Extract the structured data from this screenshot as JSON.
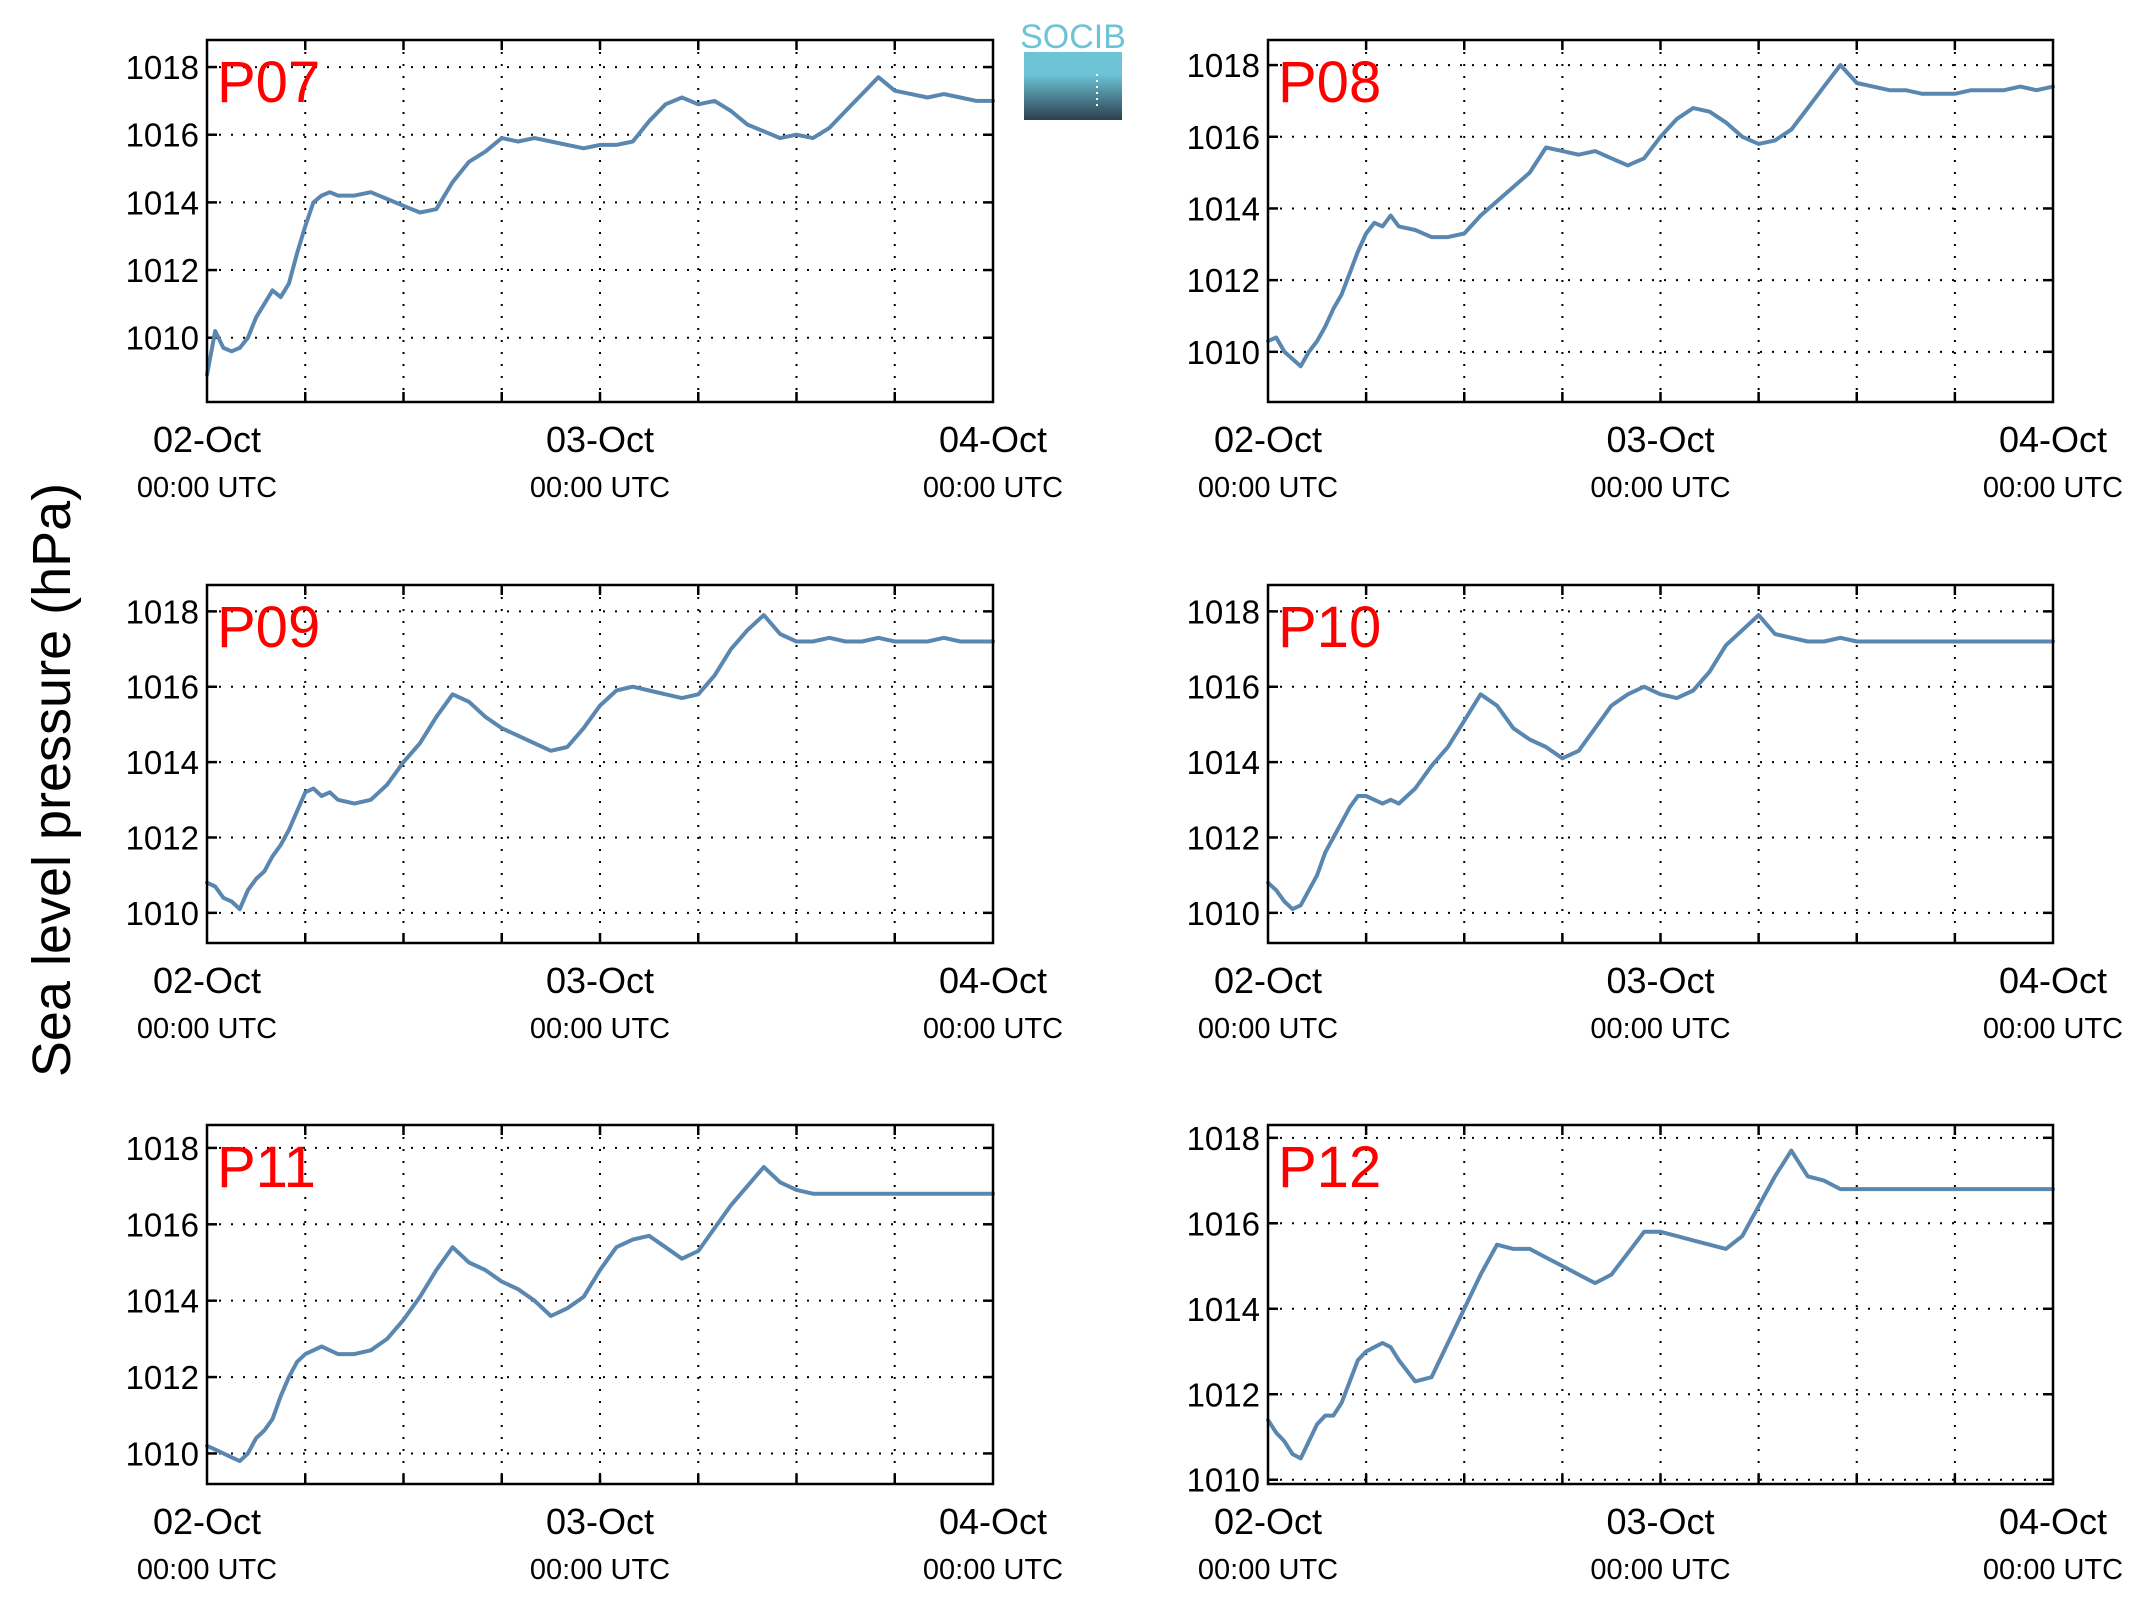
{
  "ylabel": "Sea level pressure (hPa)",
  "logo": {
    "text": "SOCIB",
    "color_top": "#6cc4d6",
    "color_bottom": "#2d3f4e"
  },
  "colors": {
    "series": "#5a87b0",
    "panel_label": "#ff0000"
  },
  "x_ticks": [
    {
      "date": "02-Oct",
      "time": "00:00 UTC",
      "hours": 0
    },
    {
      "date": "03-Oct",
      "time": "00:00 UTC",
      "hours": 24
    },
    {
      "date": "04-Oct",
      "time": "00:00 UTC",
      "hours": 48
    }
  ],
  "chart_data": [
    {
      "type": "line",
      "name": "P07",
      "xlim": [
        0,
        48
      ],
      "ylim": [
        1008.1,
        1018.8
      ],
      "yticks": [
        1010,
        1012,
        1014,
        1016,
        1018
      ],
      "grid": true,
      "x": [
        0,
        0.5,
        1,
        1.5,
        2,
        2.5,
        3,
        3.5,
        4,
        4.5,
        5,
        5.5,
        6,
        6.5,
        7,
        7.5,
        8,
        9,
        10,
        11,
        12,
        13,
        14,
        15,
        16,
        17,
        18,
        19,
        20,
        21,
        22,
        23,
        24,
        25,
        26,
        27,
        28,
        29,
        30,
        31,
        32,
        33,
        34,
        35,
        36,
        37,
        38,
        39,
        40,
        41,
        42,
        43,
        44,
        45,
        46,
        47,
        48
      ],
      "y": [
        1008.9,
        1010.2,
        1009.7,
        1009.6,
        1009.7,
        1010.0,
        1010.6,
        1011.0,
        1011.4,
        1011.2,
        1011.6,
        1012.5,
        1013.3,
        1014.0,
        1014.2,
        1014.3,
        1014.2,
        1014.2,
        1014.3,
        1014.1,
        1013.9,
        1013.7,
        1013.8,
        1014.6,
        1015.2,
        1015.5,
        1015.9,
        1015.8,
        1015.9,
        1015.8,
        1015.7,
        1015.6,
        1015.7,
        1015.7,
        1015.8,
        1016.4,
        1016.9,
        1017.1,
        1016.9,
        1017.0,
        1016.7,
        1016.3,
        1016.1,
        1015.9,
        1016.0,
        1015.9,
        1016.2,
        1016.7,
        1017.2,
        1017.7,
        1017.3,
        1017.2,
        1017.1,
        1017.2,
        1017.1,
        1017.0,
        1017.0
      ]
    },
    {
      "type": "line",
      "name": "P08",
      "xlim": [
        0,
        48
      ],
      "ylim": [
        1008.6,
        1018.7
      ],
      "yticks": [
        1010,
        1012,
        1014,
        1016,
        1018
      ],
      "grid": true,
      "x": [
        0,
        0.5,
        1,
        1.5,
        2,
        2.5,
        3,
        3.5,
        4,
        4.5,
        5,
        5.5,
        6,
        6.5,
        7,
        7.5,
        8,
        9,
        10,
        11,
        12,
        13,
        14,
        15,
        16,
        17,
        18,
        19,
        20,
        21,
        22,
        23,
        24,
        25,
        26,
        27,
        28,
        29,
        30,
        31,
        32,
        33,
        34,
        35,
        36,
        37,
        38,
        39,
        40,
        41,
        42,
        43,
        44,
        45,
        46,
        47,
        48
      ],
      "y": [
        1010.3,
        1010.4,
        1010.0,
        1009.8,
        1009.6,
        1010.0,
        1010.3,
        1010.7,
        1011.2,
        1011.6,
        1012.2,
        1012.8,
        1013.3,
        1013.6,
        1013.5,
        1013.8,
        1013.5,
        1013.4,
        1013.2,
        1013.2,
        1013.3,
        1013.8,
        1014.2,
        1014.6,
        1015.0,
        1015.7,
        1015.6,
        1015.5,
        1015.6,
        1015.4,
        1015.2,
        1015.4,
        1016.0,
        1016.5,
        1016.8,
        1016.7,
        1016.4,
        1016.0,
        1015.8,
        1015.9,
        1016.2,
        1016.8,
        1017.4,
        1018.0,
        1017.5,
        1017.4,
        1017.3,
        1017.3,
        1017.2,
        1017.2,
        1017.2,
        1017.3,
        1017.3,
        1017.3,
        1017.4,
        1017.3,
        1017.4
      ]
    },
    {
      "type": "line",
      "name": "P09",
      "xlim": [
        0,
        48
      ],
      "ylim": [
        1009.2,
        1018.7
      ],
      "yticks": [
        1010,
        1012,
        1014,
        1016,
        1018
      ],
      "grid": true,
      "x": [
        0,
        0.5,
        1,
        1.5,
        2,
        2.5,
        3,
        3.5,
        4,
        4.5,
        5,
        5.5,
        6,
        6.5,
        7,
        7.5,
        8,
        9,
        10,
        11,
        12,
        13,
        14,
        15,
        16,
        17,
        18,
        19,
        20,
        21,
        22,
        23,
        24,
        25,
        26,
        27,
        28,
        29,
        30,
        31,
        32,
        33,
        34,
        35,
        36,
        37,
        38,
        39,
        40,
        41,
        42,
        43,
        44,
        45,
        46,
        47,
        48
      ],
      "y": [
        1010.8,
        1010.7,
        1010.4,
        1010.3,
        1010.1,
        1010.6,
        1010.9,
        1011.1,
        1011.5,
        1011.8,
        1012.2,
        1012.7,
        1013.2,
        1013.3,
        1013.1,
        1013.2,
        1013.0,
        1012.9,
        1013.0,
        1013.4,
        1014.0,
        1014.5,
        1015.2,
        1015.8,
        1015.6,
        1015.2,
        1014.9,
        1014.7,
        1014.5,
        1014.3,
        1014.4,
        1014.9,
        1015.5,
        1015.9,
        1016.0,
        1015.9,
        1015.8,
        1015.7,
        1015.8,
        1016.3,
        1017.0,
        1017.5,
        1017.9,
        1017.4,
        1017.2,
        1017.2,
        1017.3,
        1017.2,
        1017.2,
        1017.3,
        1017.2,
        1017.2,
        1017.2,
        1017.3,
        1017.2,
        1017.2,
        1017.2
      ]
    },
    {
      "type": "line",
      "name": "P10",
      "xlim": [
        0,
        48
      ],
      "ylim": [
        1009.2,
        1018.7
      ],
      "yticks": [
        1010,
        1012,
        1014,
        1016,
        1018
      ],
      "grid": true,
      "x": [
        0,
        0.5,
        1,
        1.5,
        2,
        2.5,
        3,
        3.5,
        4,
        4.5,
        5,
        5.5,
        6,
        6.5,
        7,
        7.5,
        8,
        9,
        10,
        11,
        12,
        13,
        14,
        15,
        16,
        17,
        18,
        19,
        20,
        21,
        22,
        23,
        24,
        25,
        26,
        27,
        28,
        29,
        30,
        31,
        32,
        33,
        34,
        35,
        36,
        37,
        38,
        39,
        40,
        41,
        42,
        43,
        44,
        45,
        46,
        47,
        48
      ],
      "y": [
        1010.8,
        1010.6,
        1010.3,
        1010.1,
        1010.2,
        1010.6,
        1011.0,
        1011.6,
        1012.0,
        1012.4,
        1012.8,
        1013.1,
        1013.1,
        1013.0,
        1012.9,
        1013.0,
        1012.9,
        1013.3,
        1013.9,
        1014.4,
        1015.1,
        1015.8,
        1015.5,
        1014.9,
        1014.6,
        1014.4,
        1014.1,
        1014.3,
        1014.9,
        1015.5,
        1015.8,
        1016.0,
        1015.8,
        1015.7,
        1015.9,
        1016.4,
        1017.1,
        1017.5,
        1017.9,
        1017.4,
        1017.3,
        1017.2,
        1017.2,
        1017.3,
        1017.2,
        1017.2,
        1017.2,
        1017.2,
        1017.2,
        1017.2,
        1017.2,
        1017.2,
        1017.2,
        1017.2,
        1017.2,
        1017.2,
        1017.2
      ]
    },
    {
      "type": "line",
      "name": "P11",
      "xlim": [
        0,
        48
      ],
      "ylim": [
        1009.2,
        1018.6
      ],
      "yticks": [
        1010,
        1012,
        1014,
        1016,
        1018
      ],
      "grid": true,
      "x": [
        0,
        0.5,
        1,
        1.5,
        2,
        2.5,
        3,
        3.5,
        4,
        4.5,
        5,
        5.5,
        6,
        6.5,
        7,
        7.5,
        8,
        9,
        10,
        11,
        12,
        13,
        14,
        15,
        16,
        17,
        18,
        19,
        20,
        21,
        22,
        23,
        24,
        25,
        26,
        27,
        28,
        29,
        30,
        31,
        32,
        33,
        34,
        35,
        36,
        37,
        38,
        39,
        40,
        41,
        42,
        43,
        44,
        45,
        46,
        47,
        48
      ],
      "y": [
        1010.2,
        1010.1,
        1010.0,
        1009.9,
        1009.8,
        1010.0,
        1010.4,
        1010.6,
        1010.9,
        1011.5,
        1012.0,
        1012.4,
        1012.6,
        1012.7,
        1012.8,
        1012.7,
        1012.6,
        1012.6,
        1012.7,
        1013.0,
        1013.5,
        1014.1,
        1014.8,
        1015.4,
        1015.0,
        1014.8,
        1014.5,
        1014.3,
        1014.0,
        1013.6,
        1013.8,
        1014.1,
        1014.8,
        1015.4,
        1015.6,
        1015.7,
        1015.4,
        1015.1,
        1015.3,
        1015.9,
        1016.5,
        1017.0,
        1017.5,
        1017.1,
        1016.9,
        1016.8,
        1016.8,
        1016.8,
        1016.8,
        1016.8,
        1016.8,
        1016.8,
        1016.8,
        1016.8,
        1016.8,
        1016.8,
        1016.8
      ]
    },
    {
      "type": "line",
      "name": "P12",
      "xlim": [
        0,
        48
      ],
      "ylim": [
        1009.9,
        1018.3
      ],
      "yticks": [
        1010,
        1012,
        1014,
        1016,
        1018
      ],
      "grid": true,
      "x": [
        0,
        0.5,
        1,
        1.5,
        2,
        2.5,
        3,
        3.5,
        4,
        4.5,
        5,
        5.5,
        6,
        6.5,
        7,
        7.5,
        8,
        9,
        10,
        11,
        12,
        13,
        14,
        15,
        16,
        17,
        18,
        19,
        20,
        21,
        22,
        23,
        24,
        25,
        26,
        27,
        28,
        29,
        30,
        31,
        32,
        33,
        34,
        35,
        36,
        37,
        38,
        39,
        40,
        41,
        42,
        43,
        44,
        45,
        46,
        47,
        48
      ],
      "y": [
        1011.4,
        1011.1,
        1010.9,
        1010.6,
        1010.5,
        1010.9,
        1011.3,
        1011.5,
        1011.5,
        1011.8,
        1012.3,
        1012.8,
        1013.0,
        1013.1,
        1013.2,
        1013.1,
        1012.8,
        1012.3,
        1012.4,
        1013.2,
        1014.0,
        1014.8,
        1015.5,
        1015.4,
        1015.4,
        1015.2,
        1015.0,
        1014.8,
        1014.6,
        1014.8,
        1015.3,
        1015.8,
        1015.8,
        1015.7,
        1015.6,
        1015.5,
        1015.4,
        1015.7,
        1016.4,
        1017.1,
        1017.7,
        1017.1,
        1017.0,
        1016.8,
        1016.8,
        1016.8,
        1016.8,
        1016.8,
        1016.8,
        1016.8,
        1016.8,
        1016.8,
        1016.8,
        1016.8,
        1016.8,
        1016.8,
        1016.8
      ]
    }
  ]
}
